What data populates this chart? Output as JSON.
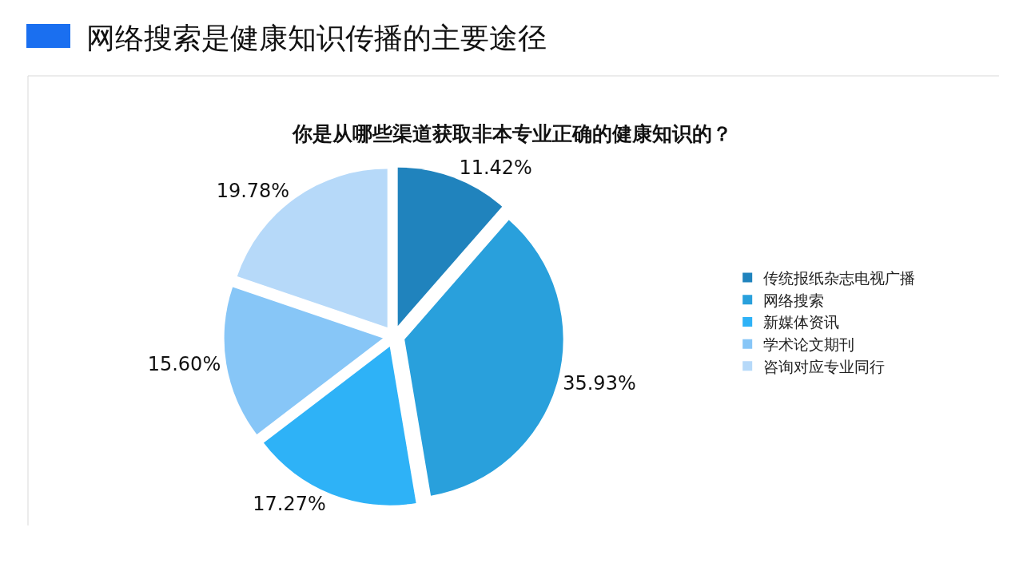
{
  "chart_data": {
    "type": "pie",
    "title": "网络搜索是健康知识传播的主要途径",
    "subtitle": "你是从哪些渠道获取非本专业正确的健康知识的？",
    "categories": [
      "传统报纸杂志电视广播",
      "网络搜索",
      "新媒体资讯",
      "学术论文期刊",
      "咨询对应专业同行"
    ],
    "values": [
      11.42,
      35.93,
      17.27,
      15.6,
      19.78
    ],
    "value_labels": [
      "11.42%",
      "35.93%",
      "17.27%",
      "15.60%",
      "19.78%"
    ],
    "colors": [
      "#2083bd",
      "#29a0dc",
      "#2eb2f7",
      "#87c6f7",
      "#b6d9f9"
    ],
    "legend": "right"
  }
}
